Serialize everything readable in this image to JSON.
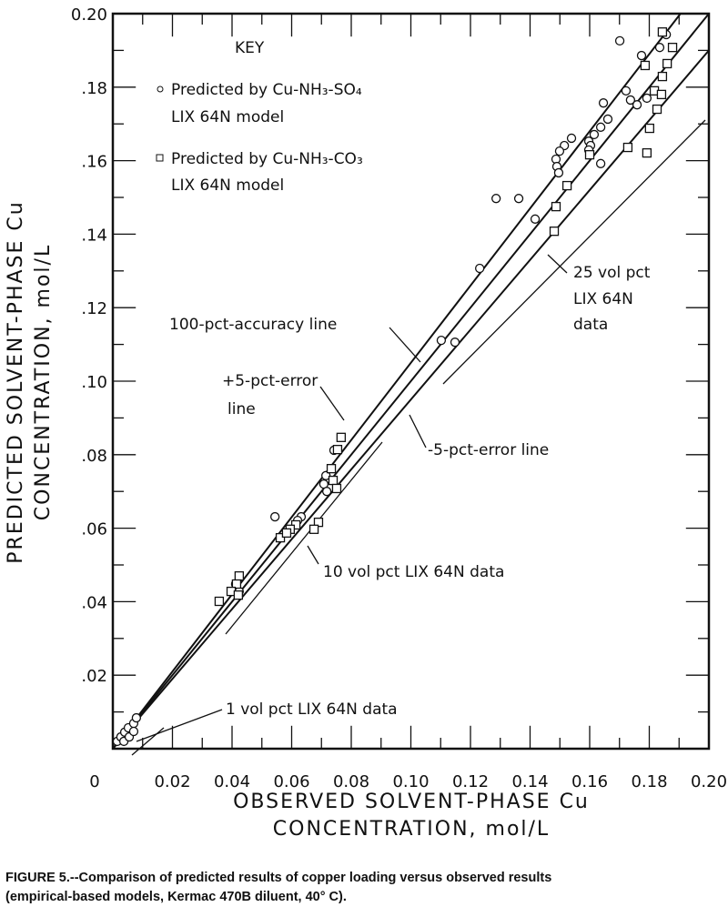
{
  "chart_data": {
    "type": "scatter",
    "xlabel": [
      "OBSERVED SOLVENT-PHASE Cu",
      "CONCENTRATION, mol/L"
    ],
    "ylabel": [
      "PREDICTED SOLVENT-PHASE Cu",
      "CONCENTRATION, mol/L"
    ],
    "xlim": [
      0,
      0.2
    ],
    "ylim": [
      0,
      0.2
    ],
    "x_ticks": [
      "0",
      "0.02",
      "0.04",
      "0.06",
      "0.08",
      "0.10",
      "0.12",
      "0.14",
      "0.16",
      "0.18",
      "0.20"
    ],
    "y_ticks": [
      ".02",
      ".04",
      ".06",
      ".08",
      ".10",
      ".12",
      ".14",
      ".16",
      ".18",
      "0.20"
    ],
    "grid": false,
    "legend": {
      "title": "KEY",
      "position": "top-left",
      "entries": [
        {
          "marker": "circle",
          "line1": "Predicted by Cu-NH₃-SO₄",
          "line2": "LIX 64N model"
        },
        {
          "marker": "square",
          "line1": "Predicted by Cu-NH₃-CO₃",
          "line2": "LIX 64N model"
        }
      ]
    },
    "reference_lines": [
      {
        "label": "100-pct-accuracy line",
        "slope": 1.0
      },
      {
        "label": "+5-pct-error line",
        "slope": 1.05
      },
      {
        "label": "-5-pct-error line",
        "slope": 0.95
      }
    ],
    "annotations": {
      "accuracy": "100-pct-accuracy line",
      "plus5_a": "+5-pct-error",
      "plus5_b": "line",
      "minus5": "-5-pct-error line",
      "vol25_a": "25 vol pct",
      "vol25_b": "LIX 64N",
      "vol25_c": "data",
      "vol10": "10 vol pct LIX 64N data",
      "vol1": "1 vol pct LIX 64N data"
    },
    "series": [
      {
        "marker": "circle",
        "name": "Predicted by Cu-NH₃-SO₄ LIX 64N model",
        "points": [
          [
            0.1857,
            0.1943
          ],
          [
            0.1701,
            0.1926
          ],
          [
            0.1835,
            0.1908
          ],
          [
            0.1774,
            0.1886
          ],
          [
            0.1722,
            0.179
          ],
          [
            0.1737,
            0.1765
          ],
          [
            0.1759,
            0.1752
          ],
          [
            0.1792,
            0.177
          ],
          [
            0.1646,
            0.1757
          ],
          [
            0.1661,
            0.1713
          ],
          [
            0.1637,
            0.1691
          ],
          [
            0.1615,
            0.1671
          ],
          [
            0.1597,
            0.1653
          ],
          [
            0.1603,
            0.1641
          ],
          [
            0.1597,
            0.1629
          ],
          [
            0.1637,
            0.1592
          ],
          [
            0.1539,
            0.1661
          ],
          [
            0.1515,
            0.1641
          ],
          [
            0.1499,
            0.1626
          ],
          [
            0.1487,
            0.1604
          ],
          [
            0.149,
            0.1584
          ],
          [
            0.1496,
            0.1567
          ],
          [
            0.1362,
            0.1497
          ],
          [
            0.1286,
            0.1497
          ],
          [
            0.1417,
            0.1441
          ],
          [
            0.1231,
            0.1307
          ],
          [
            0.1148,
            0.1106
          ],
          [
            0.1102,
            0.1111
          ],
          [
            0.0742,
            0.0812
          ],
          [
            0.0715,
            0.0743
          ],
          [
            0.0708,
            0.072
          ],
          [
            0.0718,
            0.07
          ],
          [
            0.0632,
            0.0631
          ],
          [
            0.062,
            0.0621
          ],
          [
            0.0544,
            0.0631
          ],
          [
            0.0412,
            0.0448
          ],
          [
            0.0424,
            0.0428
          ],
          [
            0.0015,
            0.002
          ],
          [
            0.0027,
            0.0032
          ],
          [
            0.004,
            0.0045
          ],
          [
            0.0052,
            0.0057
          ],
          [
            0.007,
            0.0069
          ],
          [
            0.0079,
            0.0084
          ],
          [
            0.0037,
            0.002
          ],
          [
            0.0055,
            0.0032
          ],
          [
            0.007,
            0.0047
          ]
        ]
      },
      {
        "marker": "square",
        "name": "Predicted by Cu-NH₃-CO₃ LIX 64N model",
        "points": [
          [
            0.1844,
            0.195
          ],
          [
            0.1878,
            0.1908
          ],
          [
            0.1786,
            0.1859
          ],
          [
            0.186,
            0.1864
          ],
          [
            0.1844,
            0.1829
          ],
          [
            0.1817,
            0.179
          ],
          [
            0.1841,
            0.178
          ],
          [
            0.1826,
            0.174
          ],
          [
            0.1801,
            0.1688
          ],
          [
            0.1792,
            0.1621
          ],
          [
            0.1728,
            0.1636
          ],
          [
            0.16,
            0.1616
          ],
          [
            0.1524,
            0.1532
          ],
          [
            0.1487,
            0.1475
          ],
          [
            0.1481,
            0.1408
          ],
          [
            0.0766,
            0.0847
          ],
          [
            0.0754,
            0.0814
          ],
          [
            0.0733,
            0.0762
          ],
          [
            0.0739,
            0.073
          ],
          [
            0.0751,
            0.0708
          ],
          [
            0.069,
            0.0616
          ],
          [
            0.0675,
            0.0597
          ],
          [
            0.0562,
            0.0574
          ],
          [
            0.0614,
            0.0609
          ],
          [
            0.0595,
            0.0597
          ],
          [
            0.0583,
            0.0587
          ],
          [
            0.0424,
            0.047
          ],
          [
            0.0415,
            0.0448
          ],
          [
            0.0397,
            0.0428
          ],
          [
            0.0421,
            0.0418
          ],
          [
            0.0357,
            0.0401
          ]
        ]
      }
    ]
  },
  "caption": {
    "line1": "FIGURE 5.--Comparison of predicted results of copper loading versus observed results",
    "line2": "(empirical-based models, Kermac 470B diluent, 40° C)."
  }
}
